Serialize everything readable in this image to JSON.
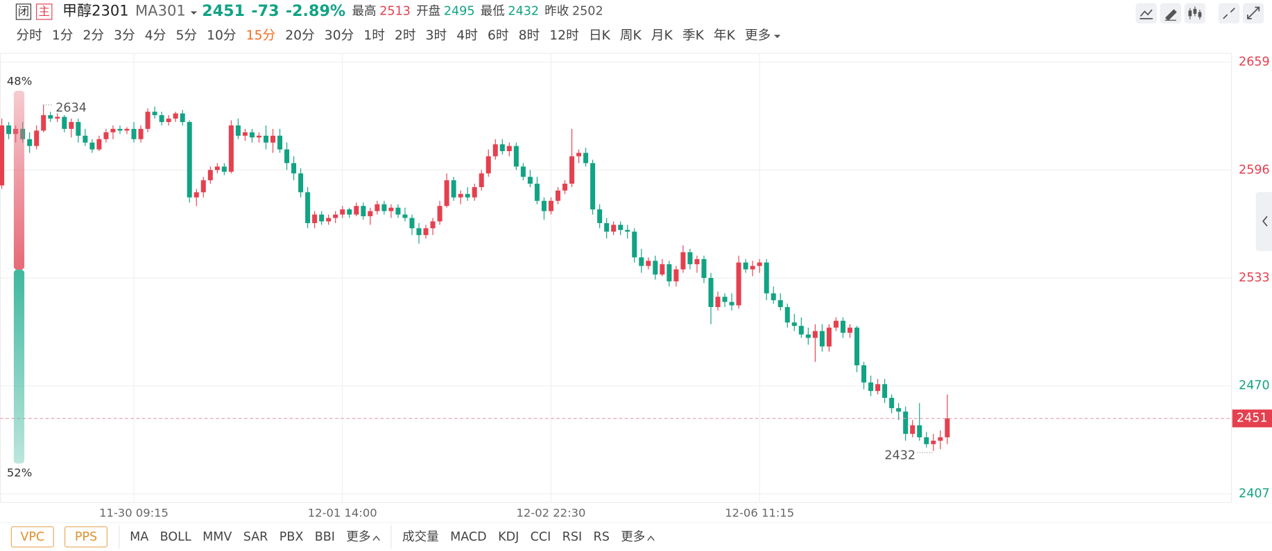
{
  "header": {
    "closed_tag": "闭",
    "main_tag": "主",
    "symbol": "甲醇2301",
    "indicator": "MA301",
    "last": "2451",
    "change": "-73",
    "change_pct": "-2.89%",
    "stats": [
      {
        "label": "最高",
        "value": "2513",
        "color": "#e5404f"
      },
      {
        "label": "开盘",
        "value": "2495",
        "color": "#11a383"
      },
      {
        "label": "最低",
        "value": "2432",
        "color": "#11a383"
      },
      {
        "label": "昨收",
        "value": "2502",
        "color": "#555555"
      }
    ]
  },
  "timeframes": {
    "items": [
      "分时",
      "1分",
      "2分",
      "3分",
      "4分",
      "5分",
      "10分",
      "15分",
      "20分",
      "30分",
      "1时",
      "2时",
      "3时",
      "4时",
      "6时",
      "8时",
      "12时",
      "日K",
      "周K",
      "月K",
      "季K",
      "年K",
      "更多"
    ],
    "active": "15分",
    "active_color": "#f06d22"
  },
  "gauge": {
    "values": [
      48,
      52
    ],
    "value_labels": [
      "48%",
      "52%"
    ],
    "colors": [
      "#e66a78",
      "#3fb89e"
    ]
  },
  "bottom_bar": {
    "buttons": [
      "VPC",
      "PPS"
    ],
    "main_indicators": [
      "MA",
      "BOLL",
      "MMV",
      "SAR",
      "PBX",
      "BBI",
      "更多"
    ],
    "sub_indicators": [
      "成交量",
      "MACD",
      "KDJ",
      "CCI",
      "RSI",
      "RS",
      "更多"
    ]
  },
  "chart_data": {
    "type": "candlestick",
    "up_color": "#e5404f",
    "down_color": "#11a383",
    "grid": true,
    "categories": [
      null,
      null,
      null,
      null,
      null,
      null,
      null,
      null,
      null,
      null,
      null,
      null,
      null,
      null,
      null,
      null,
      null,
      null,
      null,
      "11-30 09:15",
      null,
      null,
      null,
      null,
      null,
      null,
      null,
      null,
      null,
      null,
      null,
      null,
      null,
      null,
      null,
      null,
      null,
      null,
      null,
      null,
      null,
      null,
      null,
      null,
      null,
      null,
      null,
      null,
      null,
      "12-01 14:00",
      null,
      null,
      null,
      null,
      null,
      null,
      null,
      null,
      null,
      null,
      null,
      null,
      null,
      null,
      null,
      null,
      null,
      null,
      null,
      null,
      null,
      null,
      null,
      null,
      null,
      null,
      null,
      null,
      null,
      "12-02 22:30",
      null,
      null,
      null,
      null,
      null,
      null,
      null,
      null,
      null,
      null,
      null,
      null,
      null,
      null,
      null,
      null,
      null,
      null,
      null,
      null,
      null,
      null,
      null,
      null,
      null,
      null,
      null,
      null,
      null,
      "12-06 11:15",
      null,
      null,
      null,
      null,
      null,
      null,
      null,
      null,
      null,
      null,
      null,
      null,
      null,
      null,
      null,
      null,
      null,
      null,
      null,
      null,
      null,
      null,
      null,
      null,
      null,
      null,
      null
    ],
    "open": [
      2587,
      2622,
      2617,
      2620,
      2614,
      2610,
      2619,
      2628,
      2626,
      2627,
      2620,
      2624,
      2616,
      2612,
      2608,
      2614,
      2618,
      2620,
      2619,
      2620,
      2614,
      2620,
      2630,
      2628,
      2624,
      2626,
      2629,
      2624,
      2580,
      2583,
      2590,
      2596,
      2598,
      2595,
      2622,
      2616,
      2618,
      2615,
      2616,
      2612,
      2616,
      2608,
      2600,
      2594,
      2583,
      2565,
      2570,
      2566,
      2568,
      2570,
      2573,
      2570,
      2575,
      2569,
      2572,
      2576,
      2572,
      2574,
      2570,
      2568,
      2562,
      2558,
      2562,
      2566,
      2575,
      2590,
      2580,
      2582,
      2580,
      2586,
      2594,
      2604,
      2611,
      2607,
      2610,
      2598,
      2592,
      2588,
      2578,
      2572,
      2578,
      2584,
      2588,
      2604,
      2606,
      2600,
      2573,
      2565,
      2560,
      2564,
      2561,
      2560,
      2545,
      2540,
      2543,
      2535,
      2541,
      2531,
      2538,
      2548,
      2541,
      2544,
      2533,
      2516,
      2522,
      2519,
      2517,
      2542,
      2538,
      2540,
      2542,
      2524,
      2520,
      2516,
      2507,
      2505,
      2500,
      2498,
      2502,
      2493,
      2504,
      2508,
      2501,
      2504,
      2482,
      2472,
      2467,
      2471,
      2463,
      2457,
      2455,
      2442,
      2447,
      2440,
      2436,
      2438,
      2440
    ],
    "high": [
      2626,
      2624,
      2622,
      2624,
      2618,
      2622,
      2634,
      2630,
      2629,
      2628,
      2626,
      2626,
      2620,
      2614,
      2616,
      2620,
      2622,
      2622,
      2621,
      2624,
      2622,
      2632,
      2633,
      2630,
      2628,
      2630,
      2631,
      2625,
      2585,
      2592,
      2598,
      2600,
      2600,
      2625,
      2626,
      2620,
      2620,
      2618,
      2622,
      2620,
      2620,
      2612,
      2604,
      2597,
      2586,
      2572,
      2572,
      2570,
      2572,
      2575,
      2574,
      2577,
      2577,
      2574,
      2578,
      2578,
      2576,
      2576,
      2574,
      2570,
      2565,
      2564,
      2568,
      2578,
      2594,
      2592,
      2584,
      2586,
      2588,
      2596,
      2608,
      2614,
      2614,
      2612,
      2612,
      2600,
      2596,
      2592,
      2580,
      2580,
      2586,
      2590,
      2620,
      2608,
      2609,
      2602,
      2576,
      2568,
      2566,
      2566,
      2564,
      2562,
      2550,
      2545,
      2546,
      2544,
      2543,
      2540,
      2552,
      2550,
      2546,
      2546,
      2536,
      2525,
      2524,
      2524,
      2546,
      2544,
      2543,
      2544,
      2544,
      2528,
      2524,
      2518,
      2512,
      2510,
      2504,
      2506,
      2506,
      2506,
      2510,
      2510,
      2506,
      2505,
      2484,
      2476,
      2474,
      2474,
      2465,
      2460,
      2458,
      2450,
      2460,
      2443,
      2442,
      2444,
      2465
    ],
    "low": [
      2585,
      2614,
      2612,
      2612,
      2606,
      2608,
      2618,
      2624,
      2624,
      2618,
      2615,
      2612,
      2610,
      2606,
      2607,
      2612,
      2614,
      2617,
      2617,
      2612,
      2612,
      2618,
      2626,
      2622,
      2622,
      2624,
      2622,
      2577,
      2575,
      2580,
      2588,
      2594,
      2593,
      2594,
      2614,
      2613,
      2612,
      2612,
      2608,
      2606,
      2606,
      2596,
      2590,
      2580,
      2562,
      2562,
      2564,
      2564,
      2565,
      2568,
      2568,
      2569,
      2567,
      2564,
      2570,
      2570,
      2568,
      2568,
      2566,
      2558,
      2553,
      2556,
      2558,
      2564,
      2574,
      2578,
      2576,
      2578,
      2578,
      2584,
      2592,
      2602,
      2605,
      2604,
      2596,
      2590,
      2586,
      2576,
      2567,
      2570,
      2576,
      2582,
      2586,
      2600,
      2598,
      2570,
      2562,
      2556,
      2558,
      2558,
      2556,
      2542,
      2536,
      2538,
      2532,
      2534,
      2528,
      2528,
      2536,
      2538,
      2536,
      2530,
      2506,
      2514,
      2516,
      2514,
      2515,
      2536,
      2534,
      2536,
      2520,
      2518,
      2514,
      2504,
      2502,
      2498,
      2494,
      2484,
      2490,
      2490,
      2502,
      2498,
      2498,
      2478,
      2468,
      2464,
      2465,
      2460,
      2454,
      2450,
      2438,
      2440,
      2438,
      2434,
      2432,
      2433,
      2436
    ],
    "close": [
      2622,
      2617,
      2620,
      2614,
      2610,
      2619,
      2628,
      2626,
      2627,
      2620,
      2624,
      2616,
      2612,
      2608,
      2614,
      2618,
      2620,
      2619,
      2620,
      2614,
      2620,
      2630,
      2628,
      2624,
      2626,
      2629,
      2624,
      2580,
      2583,
      2590,
      2596,
      2598,
      2595,
      2622,
      2616,
      2618,
      2615,
      2616,
      2612,
      2616,
      2608,
      2600,
      2594,
      2583,
      2565,
      2570,
      2566,
      2568,
      2570,
      2573,
      2570,
      2575,
      2569,
      2572,
      2576,
      2572,
      2574,
      2570,
      2568,
      2562,
      2558,
      2562,
      2566,
      2575,
      2590,
      2580,
      2582,
      2580,
      2586,
      2594,
      2604,
      2611,
      2607,
      2610,
      2598,
      2592,
      2588,
      2578,
      2572,
      2578,
      2584,
      2588,
      2604,
      2606,
      2600,
      2573,
      2565,
      2560,
      2564,
      2561,
      2560,
      2545,
      2540,
      2543,
      2535,
      2541,
      2531,
      2538,
      2548,
      2541,
      2544,
      2533,
      2516,
      2522,
      2519,
      2517,
      2542,
      2538,
      2540,
      2542,
      2524,
      2520,
      2516,
      2507,
      2505,
      2500,
      2498,
      2502,
      2493,
      2504,
      2508,
      2501,
      2504,
      2482,
      2472,
      2467,
      2471,
      2463,
      2457,
      2455,
      2442,
      2447,
      2440,
      2436,
      2438,
      2440,
      2451
    ],
    "ylim": [
      2402,
      2664
    ],
    "yticks": [
      2407,
      2470,
      2533,
      2596,
      2659
    ],
    "prev_close": 2502,
    "last": 2451,
    "high_mark": 2634,
    "low_mark": 2432
  }
}
